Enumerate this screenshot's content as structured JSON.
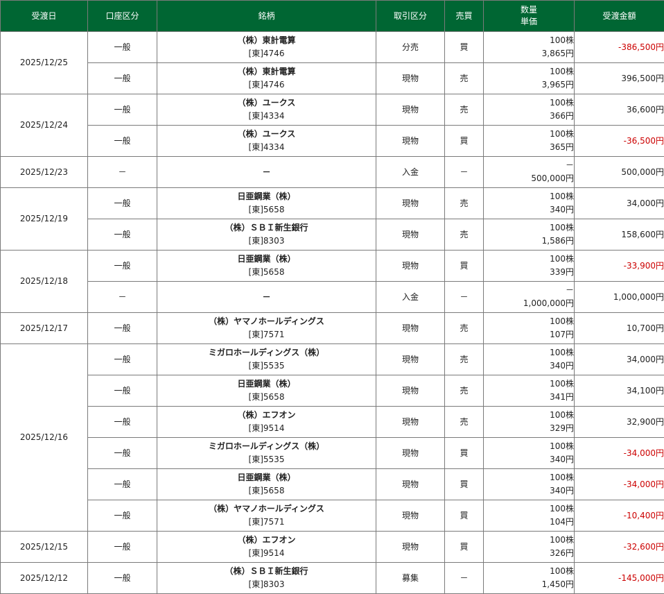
{
  "header": {
    "date": "受渡日",
    "account": "口座区分",
    "stock": "銘柄",
    "trade_type": "取引区分",
    "side": "売買",
    "qty": "数量",
    "price": "単価",
    "amount": "受渡金額"
  },
  "groups": [
    {
      "date": "2025/12/25",
      "rows": [
        {
          "account": "一般",
          "name": "（株）東計電算",
          "code": "[東]4746",
          "type": "分売",
          "side": "買",
          "qty": "100株",
          "price": "3,865円",
          "amount": "-386,500円",
          "negative": true
        },
        {
          "account": "一般",
          "name": "（株）東計電算",
          "code": "[東]4746",
          "type": "現物",
          "side": "売",
          "qty": "100株",
          "price": "3,965円",
          "amount": "396,500円",
          "negative": false
        }
      ]
    },
    {
      "date": "2025/12/24",
      "rows": [
        {
          "account": "一般",
          "name": "（株）ユークス",
          "code": "[東]4334",
          "type": "現物",
          "side": "売",
          "qty": "100株",
          "price": "366円",
          "amount": "36,600円",
          "negative": false
        },
        {
          "account": "一般",
          "name": "（株）ユークス",
          "code": "[東]4334",
          "type": "現物",
          "side": "買",
          "qty": "100株",
          "price": "365円",
          "amount": "-36,500円",
          "negative": true
        }
      ]
    },
    {
      "date": "2025/12/23",
      "rows": [
        {
          "account": "－",
          "name": "－",
          "code": "",
          "type": "入金",
          "side": "－",
          "qty": "－",
          "price": "500,000円",
          "amount": "500,000円",
          "negative": false
        }
      ]
    },
    {
      "date": "2025/12/19",
      "rows": [
        {
          "account": "一般",
          "name": "日亜鋼業（株）",
          "code": "[東]5658",
          "type": "現物",
          "side": "売",
          "qty": "100株",
          "price": "340円",
          "amount": "34,000円",
          "negative": false
        },
        {
          "account": "一般",
          "name": "（株）ＳＢＩ新生銀行",
          "code": "[東]8303",
          "type": "現物",
          "side": "売",
          "qty": "100株",
          "price": "1,586円",
          "amount": "158,600円",
          "negative": false
        }
      ]
    },
    {
      "date": "2025/12/18",
      "rows": [
        {
          "account": "一般",
          "name": "日亜鋼業（株）",
          "code": "[東]5658",
          "type": "現物",
          "side": "買",
          "qty": "100株",
          "price": "339円",
          "amount": "-33,900円",
          "negative": true
        },
        {
          "account": "－",
          "name": "－",
          "code": "",
          "type": "入金",
          "side": "－",
          "qty": "－",
          "price": "1,000,000円",
          "amount": "1,000,000円",
          "negative": false
        }
      ]
    },
    {
      "date": "2025/12/17",
      "rows": [
        {
          "account": "一般",
          "name": "（株）ヤマノホールディングス",
          "code": "[東]7571",
          "type": "現物",
          "side": "売",
          "qty": "100株",
          "price": "107円",
          "amount": "10,700円",
          "negative": false
        }
      ]
    },
    {
      "date": "2025/12/16",
      "rows": [
        {
          "account": "一般",
          "name": "ミガロホールディングス（株）",
          "code": "[東]5535",
          "type": "現物",
          "side": "売",
          "qty": "100株",
          "price": "340円",
          "amount": "34,000円",
          "negative": false
        },
        {
          "account": "一般",
          "name": "日亜鋼業（株）",
          "code": "[東]5658",
          "type": "現物",
          "side": "売",
          "qty": "100株",
          "price": "341円",
          "amount": "34,100円",
          "negative": false
        },
        {
          "account": "一般",
          "name": "（株）エフオン",
          "code": "[東]9514",
          "type": "現物",
          "side": "売",
          "qty": "100株",
          "price": "329円",
          "amount": "32,900円",
          "negative": false
        },
        {
          "account": "一般",
          "name": "ミガロホールディングス（株）",
          "code": "[東]5535",
          "type": "現物",
          "side": "買",
          "qty": "100株",
          "price": "340円",
          "amount": "-34,000円",
          "negative": true
        },
        {
          "account": "一般",
          "name": "日亜鋼業（株）",
          "code": "[東]5658",
          "type": "現物",
          "side": "買",
          "qty": "100株",
          "price": "340円",
          "amount": "-34,000円",
          "negative": true
        },
        {
          "account": "一般",
          "name": "（株）ヤマノホールディングス",
          "code": "[東]7571",
          "type": "現物",
          "side": "買",
          "qty": "100株",
          "price": "104円",
          "amount": "-10,400円",
          "negative": true
        }
      ]
    },
    {
      "date": "2025/12/15",
      "rows": [
        {
          "account": "一般",
          "name": "（株）エフオン",
          "code": "[東]9514",
          "type": "現物",
          "side": "買",
          "qty": "100株",
          "price": "326円",
          "amount": "-32,600円",
          "negative": true
        }
      ]
    },
    {
      "date": "2025/12/12",
      "rows": [
        {
          "account": "一般",
          "name": "（株）ＳＢＩ新生銀行",
          "code": "[東]8303",
          "type": "募集",
          "side": "－",
          "qty": "100株",
          "price": "1,450円",
          "amount": "-145,000円",
          "negative": true
        }
      ]
    }
  ]
}
